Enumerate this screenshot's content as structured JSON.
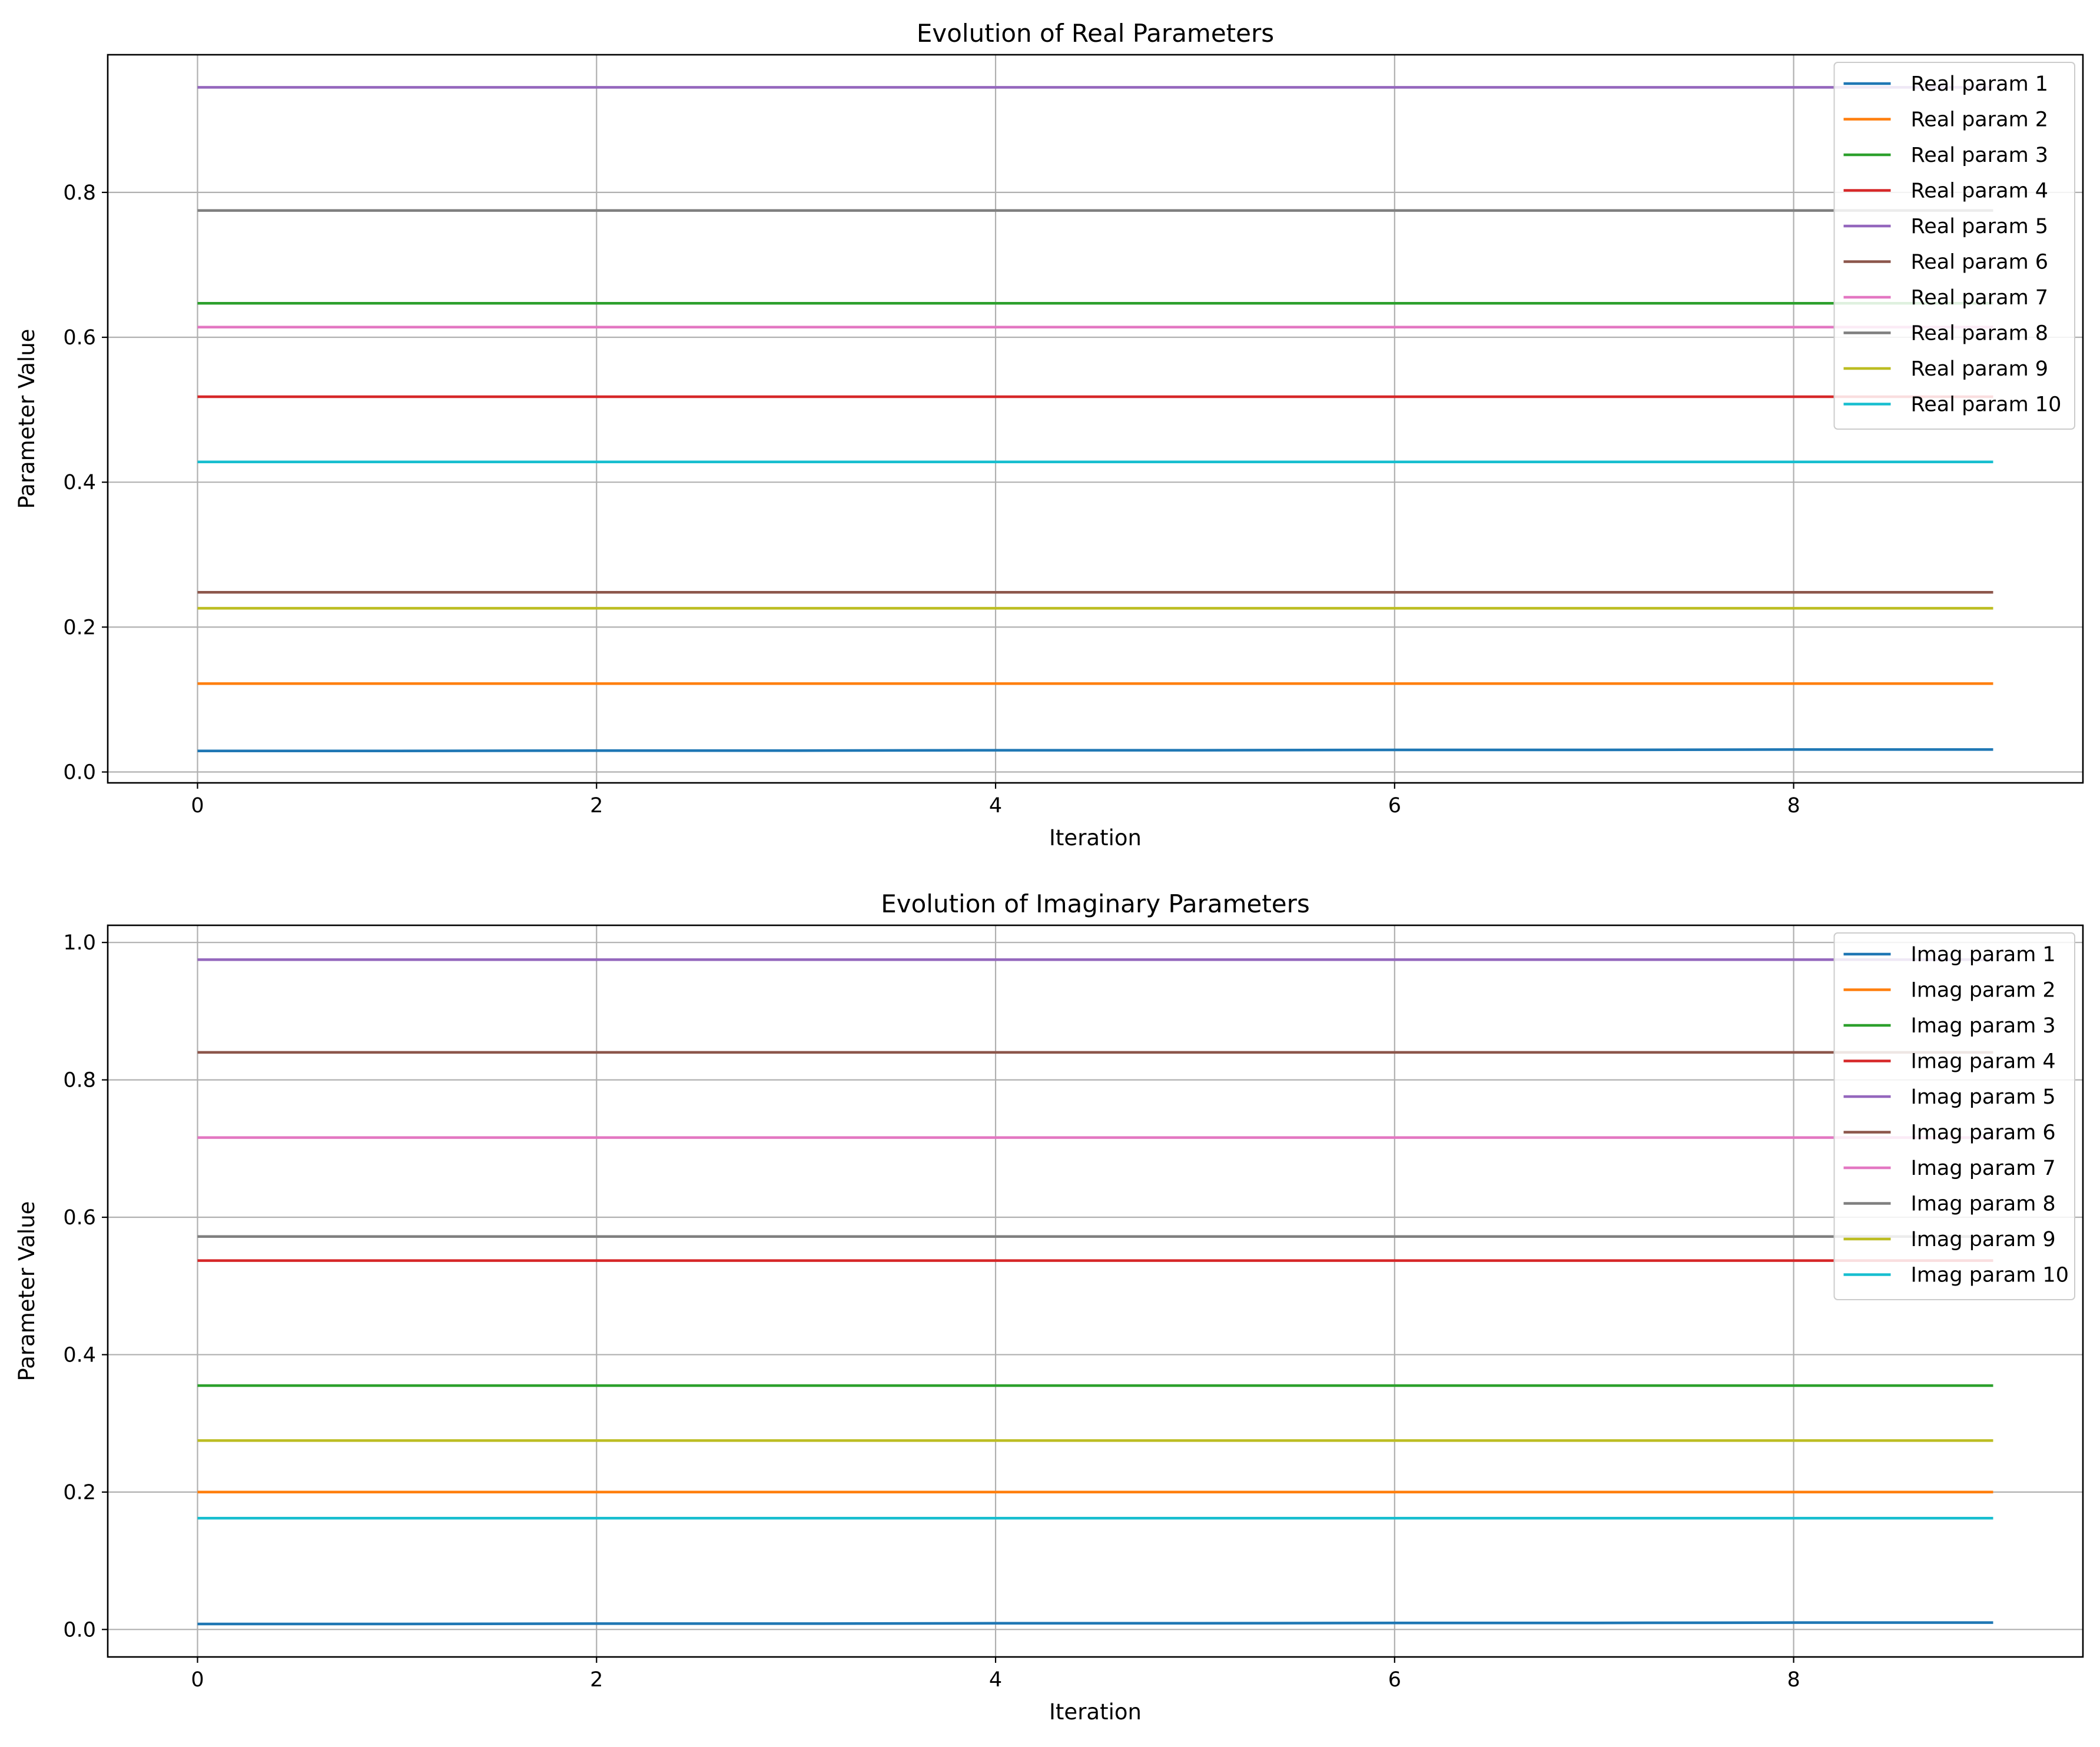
{
  "chart_data": [
    {
      "type": "line",
      "title": "Evolution of Real Parameters",
      "xlabel": "Iteration",
      "ylabel": "Parameter Value",
      "xlim": [
        -0.45,
        9.45
      ],
      "ylim": [
        -0.015,
        0.99
      ],
      "xticks": [
        0,
        2,
        4,
        6,
        8
      ],
      "xtick_labels": [
        "0",
        "2",
        "4",
        "6",
        "8"
      ],
      "yticks": [
        0.0,
        0.2,
        0.4,
        0.6,
        0.8
      ],
      "ytick_labels": [
        "0.0",
        "0.2",
        "0.4",
        "0.6",
        "0.8"
      ],
      "grid": true,
      "legend": "upper right",
      "x": [
        0,
        1,
        2,
        3,
        4,
        5,
        6,
        7,
        8,
        9
      ],
      "series": [
        {
          "name": "Real param 1",
          "color": "#1f77b4",
          "values": [
            0.029,
            0.029,
            0.0295,
            0.0295,
            0.03,
            0.03,
            0.0305,
            0.0305,
            0.031,
            0.031
          ]
        },
        {
          "name": "Real param 2",
          "color": "#ff7f0e",
          "values": [
            0.122,
            0.122,
            0.122,
            0.122,
            0.122,
            0.122,
            0.122,
            0.122,
            0.122,
            0.122
          ]
        },
        {
          "name": "Real param 3",
          "color": "#2ca02c",
          "values": [
            0.647,
            0.647,
            0.647,
            0.647,
            0.647,
            0.647,
            0.647,
            0.647,
            0.647,
            0.647
          ]
        },
        {
          "name": "Real param 4",
          "color": "#d62728",
          "values": [
            0.518,
            0.518,
            0.518,
            0.518,
            0.518,
            0.518,
            0.518,
            0.518,
            0.518,
            0.518
          ]
        },
        {
          "name": "Real param 5",
          "color": "#9467bd",
          "values": [
            0.945,
            0.945,
            0.945,
            0.945,
            0.945,
            0.945,
            0.945,
            0.945,
            0.945,
            0.945
          ]
        },
        {
          "name": "Real param 6",
          "color": "#8c564b",
          "values": [
            0.248,
            0.248,
            0.248,
            0.248,
            0.248,
            0.248,
            0.248,
            0.248,
            0.248,
            0.248
          ]
        },
        {
          "name": "Real param 7",
          "color": "#e377c2",
          "values": [
            0.614,
            0.614,
            0.614,
            0.614,
            0.614,
            0.614,
            0.614,
            0.614,
            0.614,
            0.614
          ]
        },
        {
          "name": "Real param 8",
          "color": "#7f7f7f",
          "values": [
            0.775,
            0.775,
            0.775,
            0.775,
            0.775,
            0.775,
            0.775,
            0.775,
            0.775,
            0.775
          ]
        },
        {
          "name": "Real param 9",
          "color": "#bcbd22",
          "values": [
            0.226,
            0.226,
            0.226,
            0.226,
            0.226,
            0.226,
            0.226,
            0.226,
            0.226,
            0.226
          ]
        },
        {
          "name": "Real param 10",
          "color": "#17becf",
          "values": [
            0.428,
            0.428,
            0.428,
            0.428,
            0.428,
            0.428,
            0.428,
            0.428,
            0.428,
            0.428
          ]
        }
      ]
    },
    {
      "type": "line",
      "title": "Evolution of Imaginary Parameters",
      "xlabel": "Iteration",
      "ylabel": "Parameter Value",
      "xlim": [
        -0.45,
        9.45
      ],
      "ylim": [
        -0.04,
        1.025
      ],
      "xticks": [
        0,
        2,
        4,
        6,
        8
      ],
      "xtick_labels": [
        "0",
        "2",
        "4",
        "6",
        "8"
      ],
      "yticks": [
        0.0,
        0.2,
        0.4,
        0.6,
        0.8,
        1.0
      ],
      "ytick_labels": [
        "0.0",
        "0.2",
        "0.4",
        "0.6",
        "0.8",
        "1.0"
      ],
      "grid": true,
      "legend": "upper right",
      "x": [
        0,
        1,
        2,
        3,
        4,
        5,
        6,
        7,
        8,
        9
      ],
      "series": [
        {
          "name": "Imag param 1",
          "color": "#1f77b4",
          "values": [
            0.008,
            0.008,
            0.0085,
            0.0085,
            0.009,
            0.009,
            0.0095,
            0.0095,
            0.01,
            0.01
          ]
        },
        {
          "name": "Imag param 2",
          "color": "#ff7f0e",
          "values": [
            0.2,
            0.2,
            0.2,
            0.2,
            0.2,
            0.2,
            0.2,
            0.2,
            0.2,
            0.2
          ]
        },
        {
          "name": "Imag param 3",
          "color": "#2ca02c",
          "values": [
            0.355,
            0.355,
            0.355,
            0.355,
            0.355,
            0.355,
            0.355,
            0.355,
            0.355,
            0.355
          ]
        },
        {
          "name": "Imag param 4",
          "color": "#d62728",
          "values": [
            0.537,
            0.537,
            0.537,
            0.537,
            0.537,
            0.537,
            0.537,
            0.537,
            0.537,
            0.537
          ]
        },
        {
          "name": "Imag param 5",
          "color": "#9467bd",
          "values": [
            0.975,
            0.975,
            0.975,
            0.975,
            0.975,
            0.975,
            0.975,
            0.975,
            0.975,
            0.975
          ]
        },
        {
          "name": "Imag param 6",
          "color": "#8c564b",
          "values": [
            0.84,
            0.84,
            0.84,
            0.84,
            0.84,
            0.84,
            0.84,
            0.84,
            0.84,
            0.84
          ]
        },
        {
          "name": "Imag param 7",
          "color": "#e377c2",
          "values": [
            0.716,
            0.716,
            0.716,
            0.716,
            0.716,
            0.716,
            0.716,
            0.716,
            0.716,
            0.716
          ]
        },
        {
          "name": "Imag param 8",
          "color": "#7f7f7f",
          "values": [
            0.572,
            0.572,
            0.572,
            0.572,
            0.572,
            0.572,
            0.572,
            0.572,
            0.572,
            0.572
          ]
        },
        {
          "name": "Imag param 9",
          "color": "#bcbd22",
          "values": [
            0.275,
            0.275,
            0.275,
            0.275,
            0.275,
            0.275,
            0.275,
            0.275,
            0.275,
            0.275
          ]
        },
        {
          "name": "Imag param 10",
          "color": "#17becf",
          "values": [
            0.162,
            0.162,
            0.162,
            0.162,
            0.162,
            0.162,
            0.162,
            0.162,
            0.162,
            0.162
          ]
        }
      ]
    }
  ]
}
